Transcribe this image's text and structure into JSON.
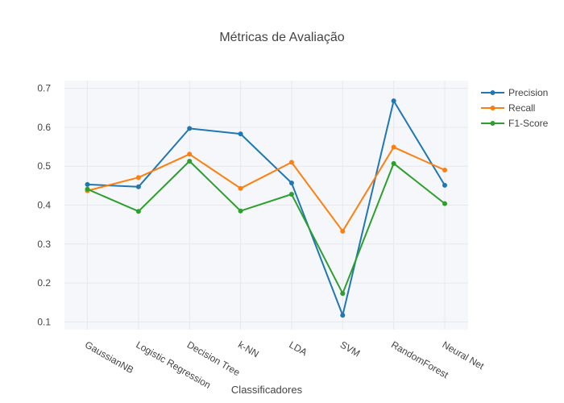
{
  "chart_data": {
    "type": "line",
    "title": "Métricas de Avaliação",
    "xlabel": "Classificadores",
    "ylabel": "",
    "categories": [
      "GaussianNB",
      "Logistic Regression",
      "Decision Tree",
      "k-NN",
      "LDA",
      "SVM",
      "RandomForest",
      "Neural Net"
    ],
    "ylim": [
      0.08,
      0.72
    ],
    "yticks": [
      0.1,
      0.2,
      0.3,
      0.4,
      0.5,
      0.6,
      0.7
    ],
    "ytick_labels": [
      "0.1",
      "0.2",
      "0.3",
      "0.4",
      "0.5",
      "0.6",
      "0.7"
    ],
    "grid": true,
    "legend_position": "top-right",
    "series": [
      {
        "name": "Precision",
        "color": "#1f77b4",
        "values": [
          0.453,
          0.447,
          0.597,
          0.583,
          0.457,
          0.117,
          0.668,
          0.451
        ]
      },
      {
        "name": "Recall",
        "color": "#ff7f0e",
        "values": [
          0.437,
          0.471,
          0.531,
          0.443,
          0.51,
          0.333,
          0.549,
          0.49
        ]
      },
      {
        "name": "F1-Score",
        "color": "#2ca02c",
        "values": [
          0.441,
          0.384,
          0.513,
          0.385,
          0.428,
          0.173,
          0.507,
          0.404
        ]
      }
    ]
  }
}
